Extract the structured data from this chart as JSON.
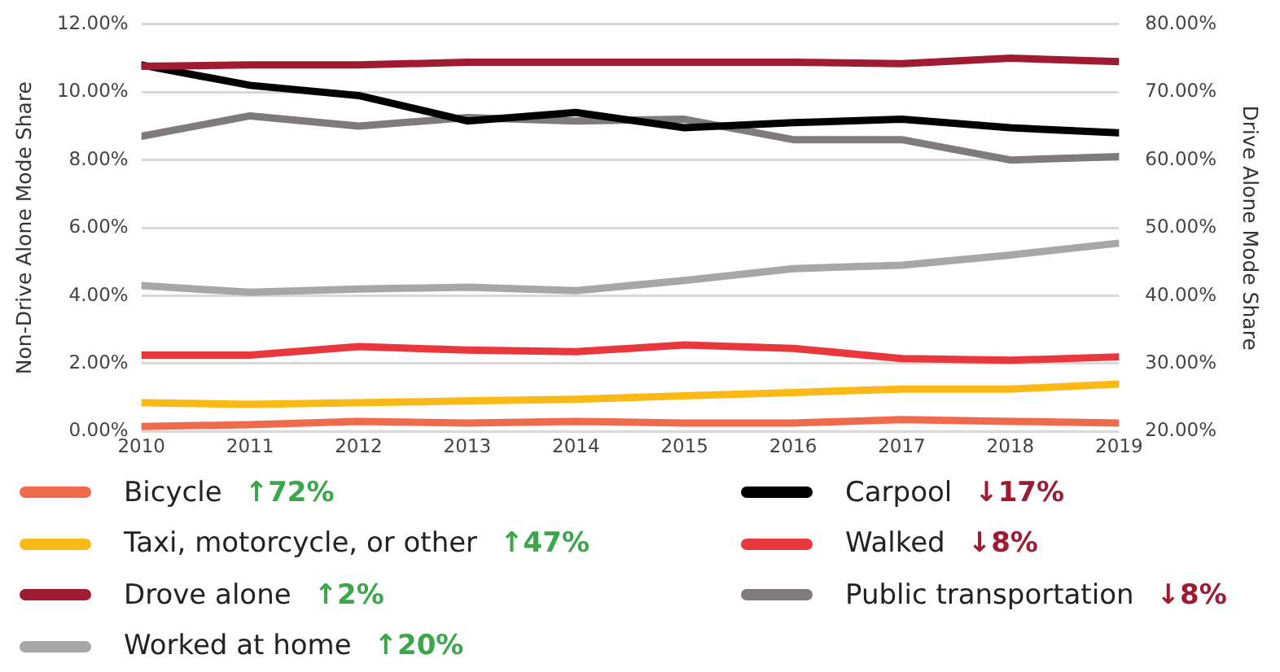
{
  "chart_data": {
    "type": "line",
    "x": [
      2010,
      2011,
      2012,
      2013,
      2014,
      2015,
      2016,
      2017,
      2018,
      2019
    ],
    "xlim": [
      2010,
      2019
    ],
    "xticks": [
      2010,
      2011,
      2012,
      2013,
      2014,
      2015,
      2016,
      2017,
      2018,
      2019
    ],
    "ylabel": "Non-Drive Alone Mode Share",
    "y2label": "Drive Alone Mode Share",
    "ylim": [
      0,
      12
    ],
    "yticks": [
      {
        "value": 0,
        "label": "0.00%"
      },
      {
        "value": 2,
        "label": "2.00%"
      },
      {
        "value": 4,
        "label": "4.00%"
      },
      {
        "value": 6,
        "label": "6.00%"
      },
      {
        "value": 8,
        "label": "8.00%"
      },
      {
        "value": 10,
        "label": "10.00%"
      },
      {
        "value": 12,
        "label": "12.00%"
      }
    ],
    "y2lim": [
      20,
      80
    ],
    "y2ticks": [
      {
        "value": 20,
        "label": "20.00%"
      },
      {
        "value": 30,
        "label": "30.00%"
      },
      {
        "value": 40,
        "label": "40.00%"
      },
      {
        "value": 50,
        "label": "50.00%"
      },
      {
        "value": 60,
        "label": "60.00%"
      },
      {
        "value": 70,
        "label": "70.00%"
      },
      {
        "value": 80,
        "label": "80.00%"
      }
    ],
    "grid": "y",
    "legend": "bottom",
    "marker": "none",
    "line_style": "solid",
    "series": [
      {
        "name": "Bicycle",
        "color": "#ee6c4d",
        "values": [
          0.15,
          0.2,
          0.3,
          0.25,
          0.3,
          0.25,
          0.25,
          0.35,
          0.3,
          0.25
        ]
      },
      {
        "name": "Taxi, motorcycle, or other",
        "color": "#fbb916",
        "values": [
          0.85,
          0.8,
          0.85,
          0.9,
          0.95,
          1.05,
          1.15,
          1.25,
          1.25,
          1.4
        ]
      },
      {
        "name": "Drove alone",
        "color": "#9e1b32",
        "axis": "y2",
        "values": [
          73.8,
          74.0,
          74.0,
          74.4,
          74.4,
          74.4,
          74.4,
          74.2,
          75.0,
          74.5
        ]
      },
      {
        "name": "Worked at home",
        "color": "#a7a7a7",
        "values": [
          4.3,
          4.1,
          4.2,
          4.25,
          4.15,
          4.45,
          4.8,
          4.9,
          5.2,
          5.55
        ]
      },
      {
        "name": "Carpool",
        "color": "#000000",
        "values": [
          10.8,
          10.2,
          9.9,
          9.15,
          9.4,
          8.95,
          9.1,
          9.2,
          8.95,
          8.8
        ]
      },
      {
        "name": "Walked",
        "color": "#e8383d",
        "values": [
          2.25,
          2.25,
          2.5,
          2.4,
          2.35,
          2.55,
          2.45,
          2.15,
          2.1,
          2.2
        ]
      },
      {
        "name": "Public transportation",
        "color": "#7f7b7d",
        "values": [
          8.7,
          9.3,
          9.0,
          9.25,
          9.15,
          9.2,
          8.6,
          8.6,
          8.0,
          8.1
        ]
      }
    ],
    "annotations": [
      "↑72%",
      "↑47%",
      "↑2%",
      "↑20%",
      "↓17%",
      "↓8%",
      "↓8%"
    ]
  }
}
